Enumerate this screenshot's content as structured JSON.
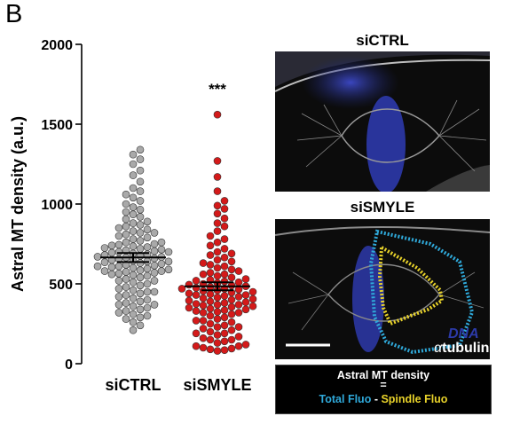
{
  "panel_letter": "B",
  "chart_data": {
    "type": "scatter",
    "ylabel": "Astral MT density (a.u.)",
    "ylim": [
      0,
      2000
    ],
    "yticks": [
      0,
      500,
      1000,
      1500,
      2000
    ],
    "categories": [
      "siCTRL",
      "siSMYLE"
    ],
    "significance": "***",
    "series": [
      {
        "name": "siCTRL",
        "color": "#a9a9a9",
        "mean": 665,
        "sem": 28,
        "values": [
          1340,
          1310,
          1280,
          1250,
          1210,
          1180,
          1140,
          1100,
          1080,
          1060,
          1040,
          1020,
          1000,
          980,
          965,
          950,
          935,
          920,
          905,
          890,
          880,
          870,
          860,
          850,
          840,
          830,
          820,
          810,
          800,
          790,
          780,
          770,
          760,
          750,
          745,
          740,
          735,
          730,
          725,
          720,
          715,
          710,
          705,
          700,
          695,
          690,
          685,
          680,
          675,
          670,
          668,
          665,
          660,
          655,
          650,
          645,
          640,
          635,
          630,
          625,
          620,
          615,
          610,
          605,
          600,
          595,
          590,
          585,
          580,
          575,
          570,
          565,
          560,
          555,
          550,
          540,
          530,
          520,
          510,
          500,
          490,
          480,
          470,
          460,
          450,
          440,
          430,
          420,
          410,
          400,
          390,
          380,
          370,
          360,
          350,
          340,
          330,
          320,
          310,
          300,
          290,
          280,
          260,
          240,
          210,
          370,
          450,
          520,
          580,
          610,
          640,
          700,
          760,
          820
        ]
      },
      {
        "name": "siSMYLE",
        "color": "#d41a1a",
        "mean": 485,
        "sem": 25,
        "values": [
          1560,
          1270,
          1170,
          1080,
          1020,
          990,
          970,
          940,
          910,
          880,
          860,
          830,
          800,
          780,
          760,
          740,
          720,
          700,
          690,
          680,
          665,
          650,
          640,
          630,
          620,
          610,
          600,
          590,
          580,
          570,
          560,
          550,
          540,
          530,
          525,
          520,
          515,
          510,
          505,
          500,
          495,
          490,
          485,
          480,
          475,
          470,
          465,
          460,
          455,
          450,
          445,
          440,
          435,
          430,
          425,
          420,
          415,
          410,
          405,
          400,
          395,
          390,
          385,
          380,
          375,
          370,
          365,
          360,
          355,
          350,
          345,
          340,
          335,
          330,
          325,
          320,
          310,
          300,
          290,
          280,
          270,
          260,
          250,
          240,
          230,
          220,
          210,
          200,
          190,
          180,
          170,
          160,
          150,
          140,
          130,
          120,
          110,
          100,
          90,
          80,
          560,
          470,
          430,
          370,
          320,
          270,
          230,
          190,
          150,
          110,
          95,
          85
        ]
      }
    ]
  },
  "images": {
    "top_title": "siCTRL",
    "bottom_title": "siSMYLE",
    "legend_dna": "DNA",
    "legend_alpha": "α",
    "legend_tubulin": "tubulin"
  },
  "formula": {
    "title": "Astral MT density",
    "equals": "=",
    "total": "Total Fluo",
    "minus": " - ",
    "spindle": "Spindle Fluo"
  },
  "colors": {
    "dna_blue": "#2c3aa8",
    "total_outline": "#2fa9da",
    "spindle_outline": "#e8d22a"
  }
}
